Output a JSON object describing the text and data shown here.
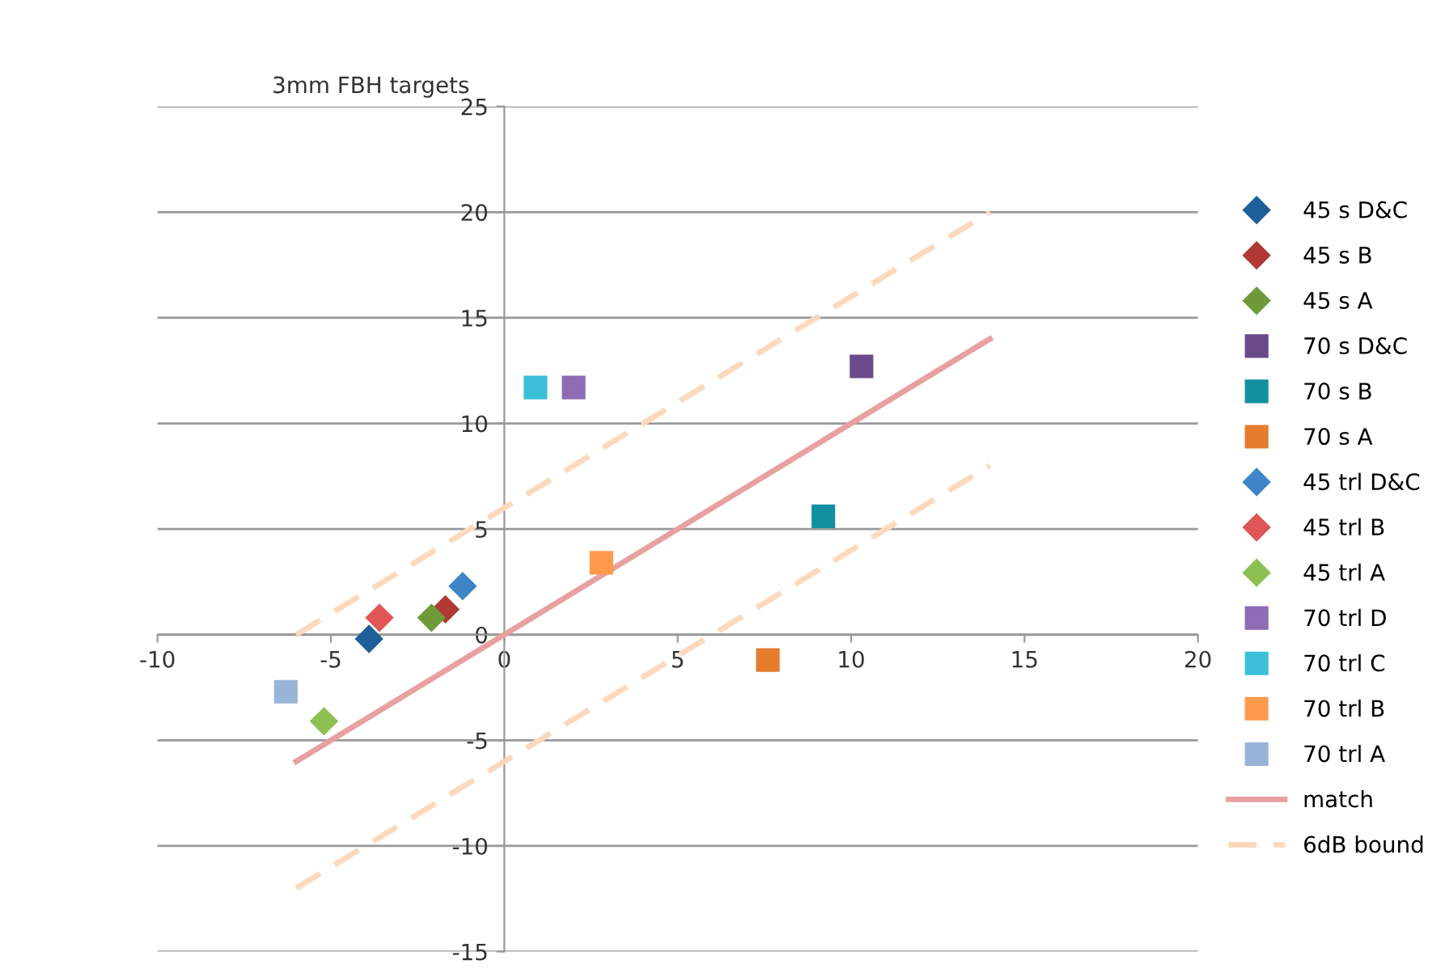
{
  "chart_data": {
    "type": "scatter",
    "title": "3mm FBH targets",
    "xlim": [
      -10,
      20
    ],
    "ylim": [
      -15,
      25
    ],
    "xticks": [
      -10,
      -5,
      0,
      5,
      10,
      15,
      20
    ],
    "yticks": [
      -15,
      -10,
      -5,
      0,
      5,
      10,
      15,
      20,
      25
    ],
    "grid": "y",
    "legend": "right",
    "series": [
      {
        "name": "45 s D&C",
        "color": "#1f5f99",
        "marker": "diamond",
        "x": [
          -3.9
        ],
        "values": [
          -0.2
        ]
      },
      {
        "name": "45 s B",
        "color": "#b03a33",
        "marker": "diamond",
        "x": [
          -1.7
        ],
        "values": [
          1.2
        ]
      },
      {
        "name": "45 s A",
        "color": "#6e9a3a",
        "marker": "diamond",
        "x": [
          -2.1
        ],
        "values": [
          0.8
        ]
      },
      {
        "name": "70 s D&C",
        "color": "#6a4a8a",
        "marker": "square",
        "x": [
          10.3
        ],
        "values": [
          12.7
        ]
      },
      {
        "name": "70 s B",
        "color": "#13909e",
        "marker": "square",
        "x": [
          9.2
        ],
        "values": [
          5.6
        ]
      },
      {
        "name": "70 s A",
        "color": "#e57c2e",
        "marker": "square",
        "x": [
          7.6
        ],
        "values": [
          -1.2
        ]
      },
      {
        "name": "45 trl D&C",
        "color": "#3d85c6",
        "marker": "diamond",
        "x": [
          -1.2
        ],
        "values": [
          2.3
        ]
      },
      {
        "name": "45 trl B",
        "color": "#e05555",
        "marker": "diamond",
        "x": [
          -3.6
        ],
        "values": [
          0.8
        ]
      },
      {
        "name": "45 trl A",
        "color": "#8cc152",
        "marker": "diamond",
        "x": [
          -5.2
        ],
        "values": [
          -4.1
        ]
      },
      {
        "name": "70 trl D",
        "color": "#8e6bb5",
        "marker": "square",
        "x": [
          2.0
        ],
        "values": [
          11.7
        ]
      },
      {
        "name": "70 trl C",
        "color": "#3cc0d8",
        "marker": "square",
        "x": [
          0.9
        ],
        "values": [
          11.7
        ]
      },
      {
        "name": "70 trl B",
        "color": "#ff9a4d",
        "marker": "square",
        "x": [
          2.8
        ],
        "values": [
          3.4
        ]
      },
      {
        "name": "70 trl A",
        "color": "#9ab4d8",
        "marker": "square",
        "x": [
          -6.3
        ],
        "values": [
          -2.7
        ]
      },
      {
        "name": "match",
        "type": "line",
        "color": "#e8a0a0",
        "marker": "none",
        "line_style": "solid",
        "x": [
          -6,
          14
        ],
        "values": [
          -6,
          14
        ]
      },
      {
        "name": "6dB bound",
        "type": "line",
        "color": "#fcd9bd",
        "marker": "none",
        "line_style": "dashed",
        "x": [
          -6,
          14
        ],
        "values": [
          0,
          20
        ]
      },
      {
        "type": "line",
        "color": "#fcd9bd",
        "marker": "none",
        "line_style": "dashed",
        "x": [
          -6,
          14
        ],
        "values": [
          -12,
          8
        ]
      }
    ]
  }
}
